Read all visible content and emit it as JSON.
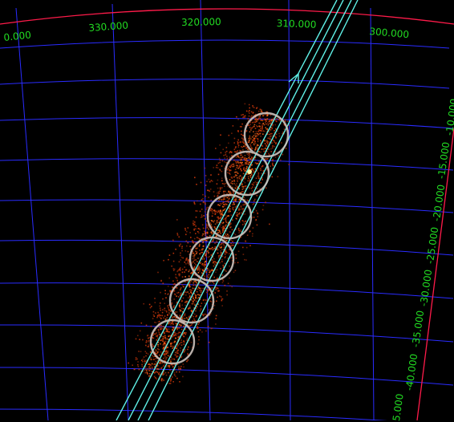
{
  "colors": {
    "background": "#000000",
    "grid": "#2a2cff",
    "boundary": "#ff1b4a",
    "label": "#22dd22",
    "track": "#5ff0e6",
    "circle": "#cdc3bd",
    "emission_core": "#fff2a0",
    "emission_dim": "#c8360a"
  },
  "ra_labels": [
    "0.000",
    "330.000",
    "320.000",
    "310.000",
    "300.000"
  ],
  "dec_labels": [
    "-10.000",
    "-15.000",
    "-20.000",
    "-25.000",
    "-30.000",
    "-35.000",
    "-40.000",
    "5.000"
  ],
  "regions": {
    "circle_count": 6,
    "track_count": 2
  }
}
